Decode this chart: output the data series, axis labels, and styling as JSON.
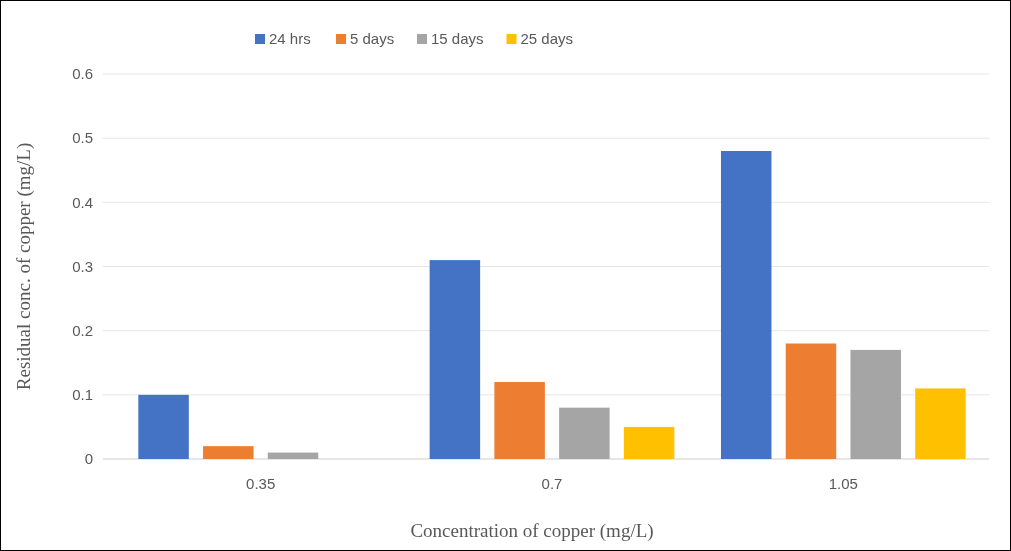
{
  "chart_data": {
    "type": "bar",
    "xlabel": "Concentration  of copper (mg/L)",
    "ylabel": "Residual conc. of copper (mg/L)",
    "categories": [
      "0.35",
      "0.7",
      "1.05"
    ],
    "series": [
      {
        "name": "24 hrs",
        "color": "#4472c4",
        "values": [
          0.1,
          0.31,
          0.48
        ]
      },
      {
        "name": "5 days",
        "color": "#ed7d31",
        "values": [
          0.02,
          0.12,
          0.18
        ]
      },
      {
        "name": "15 days",
        "color": "#a5a5a5",
        "values": [
          0.01,
          0.08,
          0.17
        ]
      },
      {
        "name": "25 days",
        "color": "#ffc000",
        "values": [
          0,
          0.05,
          0.11
        ]
      }
    ],
    "ylim": [
      0,
      0.6
    ],
    "yticks": [
      {
        "value": 0,
        "label": "0"
      },
      {
        "value": 0.1,
        "label": "0.1"
      },
      {
        "value": 0.2,
        "label": "0.2"
      },
      {
        "value": 0.3,
        "label": "0.3"
      },
      {
        "value": 0.4,
        "label": "0.4"
      },
      {
        "value": 0.5,
        "label": "0.5"
      },
      {
        "value": 0.6,
        "label": "0.6"
      }
    ],
    "grid": "y",
    "legend": "top"
  }
}
